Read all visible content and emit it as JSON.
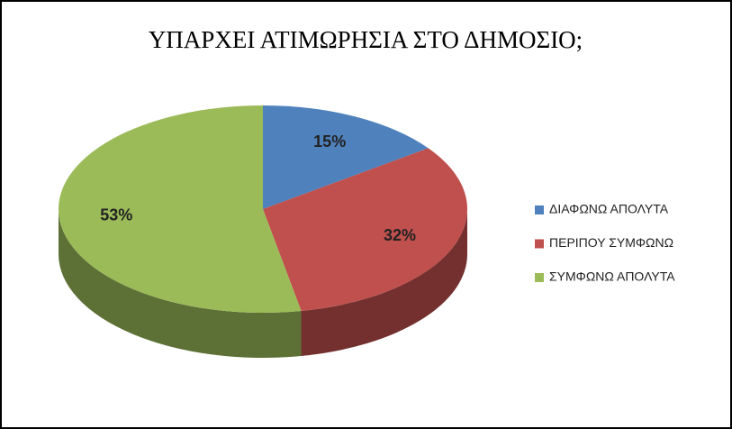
{
  "chart_data": {
    "type": "pie",
    "title": "ΥΠΑΡΧΕΙ ΑΤΙΜΩΡΗΣΙΑ ΣΤΟ ΔΗΜΟΣΙΟ;",
    "categories": [
      "ΔΙΑΦΩΝΩ ΑΠΟΛΥΤΑ",
      "ΠΕΡΙΠΟΥ ΣΥΜΦΩΝΩ",
      "ΣΥΜΦΩΝΩ ΑΠΟΛΥΤΑ"
    ],
    "values": [
      15,
      32,
      53
    ],
    "value_labels": [
      "15%",
      "32%",
      "53%"
    ],
    "colors": [
      "#4f81bd",
      "#c0504d",
      "#9bbb59"
    ],
    "legend": "right"
  }
}
